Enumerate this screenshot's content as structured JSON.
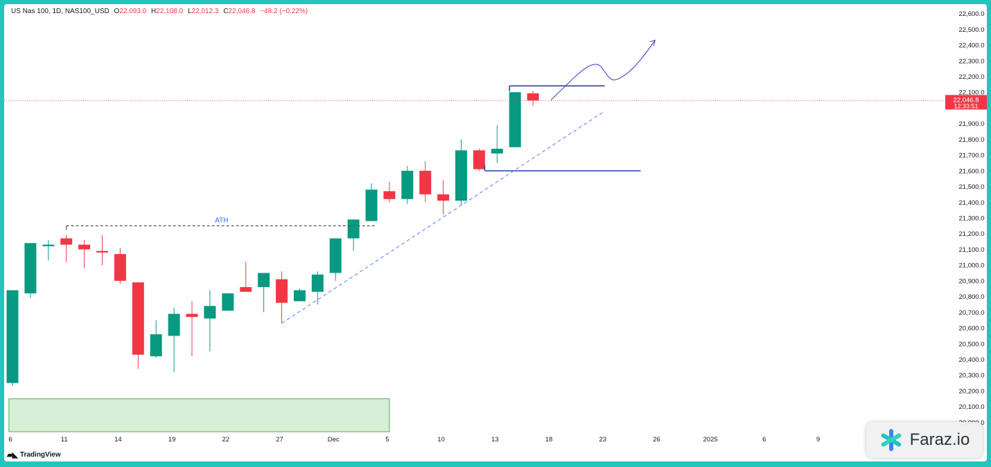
{
  "legend": {
    "symbol": "US Nas 100, 1D, NAS100_USD",
    "o_label": "O",
    "o_value": "22,093.0",
    "h_label": "H",
    "h_value": "22,108.0",
    "l_label": "L",
    "l_value": "22,012.3",
    "c_label": "C",
    "c_value": "22,046.8",
    "change": "−48.2 (−0.22%)"
  },
  "price_tag": {
    "price": "22,046.8",
    "countdown": "12:33:51",
    "value": 22046.8
  },
  "brand": {
    "tradingview": "TradingView",
    "watermark": "Faraz.io",
    "logo_icon": "asterisk-logo-icon"
  },
  "colors": {
    "up": "#089981",
    "down": "#f23645",
    "drawing": "#2962ff",
    "zone_fill": "#d6efd6",
    "zone_border": "#4caf50"
  },
  "chart_data": {
    "type": "candlestick",
    "title": "",
    "y_range": [
      19940,
      22660
    ],
    "y_ticks": [
      {
        "value": 20000,
        "label": "20,000.0"
      },
      {
        "value": 20100,
        "label": "20,100.0"
      },
      {
        "value": 20200,
        "label": "20,200.0"
      },
      {
        "value": 20300,
        "label": "20,300.0"
      },
      {
        "value": 20400,
        "label": "20,400.0"
      },
      {
        "value": 20500,
        "label": "20,500.0"
      },
      {
        "value": 20600,
        "label": "20,600.0"
      },
      {
        "value": 20700,
        "label": "20,700.0"
      },
      {
        "value": 20800,
        "label": "20,800.0"
      },
      {
        "value": 20900,
        "label": "20,900.0"
      },
      {
        "value": 21000,
        "label": "21,000.0"
      },
      {
        "value": 21100,
        "label": "21,100.0"
      },
      {
        "value": 21200,
        "label": "21,200.0"
      },
      {
        "value": 21300,
        "label": "21,300.0"
      },
      {
        "value": 21400,
        "label": "21,400.0"
      },
      {
        "value": 21500,
        "label": "21,500.0"
      },
      {
        "value": 21600,
        "label": "21,600.0"
      },
      {
        "value": 21700,
        "label": "21,700.0"
      },
      {
        "value": 21800,
        "label": "21,800.0"
      },
      {
        "value": 21900,
        "label": "21,900.0"
      },
      {
        "value": 22100,
        "label": "22,100.0"
      },
      {
        "value": 22200,
        "label": "22,200.0"
      },
      {
        "value": 22300,
        "label": "22,300.0"
      },
      {
        "value": 22400,
        "label": "22,400.0"
      },
      {
        "value": 22500,
        "label": "22,500.0"
      },
      {
        "value": 22600,
        "label": "22,600.0"
      }
    ],
    "x_ticks": [
      {
        "index": 0,
        "label": "6"
      },
      {
        "index": 3,
        "label": "11"
      },
      {
        "index": 6,
        "label": "14"
      },
      {
        "index": 9,
        "label": "19"
      },
      {
        "index": 12,
        "label": "22"
      },
      {
        "index": 15,
        "label": "27"
      },
      {
        "index": 18,
        "label": "Dec"
      },
      {
        "index": 21,
        "label": "5"
      },
      {
        "index": 24,
        "label": "10"
      },
      {
        "index": 27,
        "label": "13"
      },
      {
        "index": 30,
        "label": "18"
      },
      {
        "index": 33,
        "label": "23"
      },
      {
        "index": 36,
        "label": "26"
      },
      {
        "index": 39,
        "label": "2025"
      },
      {
        "index": 42,
        "label": "6"
      },
      {
        "index": 45,
        "label": "9"
      }
    ],
    "candles": [
      {
        "o": 20250,
        "h": 20840,
        "l": 20230,
        "c": 20840
      },
      {
        "o": 20820,
        "h": 21140,
        "l": 20790,
        "c": 21140
      },
      {
        "o": 21120,
        "h": 21160,
        "l": 21030,
        "c": 21130
      },
      {
        "o": 21170,
        "h": 21190,
        "l": 21020,
        "c": 21130
      },
      {
        "o": 21130,
        "h": 21160,
        "l": 20980,
        "c": 21100
      },
      {
        "o": 21090,
        "h": 21190,
        "l": 21000,
        "c": 21080
      },
      {
        "o": 21070,
        "h": 21110,
        "l": 20880,
        "c": 20900
      },
      {
        "o": 20890,
        "h": 20890,
        "l": 20340,
        "c": 20430
      },
      {
        "o": 20420,
        "h": 20650,
        "l": 20410,
        "c": 20560
      },
      {
        "o": 20550,
        "h": 20730,
        "l": 20320,
        "c": 20690
      },
      {
        "o": 20690,
        "h": 20770,
        "l": 20420,
        "c": 20670
      },
      {
        "o": 20660,
        "h": 20840,
        "l": 20450,
        "c": 20740
      },
      {
        "o": 20710,
        "h": 20820,
        "l": 20710,
        "c": 20820
      },
      {
        "o": 20860,
        "h": 21020,
        "l": 20840,
        "c": 20830
      },
      {
        "o": 20860,
        "h": 20950,
        "l": 20700,
        "c": 20950
      },
      {
        "o": 20910,
        "h": 20960,
        "l": 20630,
        "c": 20760
      },
      {
        "o": 20770,
        "h": 20850,
        "l": 20770,
        "c": 20840
      },
      {
        "o": 20830,
        "h": 20960,
        "l": 20750,
        "c": 20940
      },
      {
        "o": 20950,
        "h": 21170,
        "l": 20900,
        "c": 21170
      },
      {
        "o": 21170,
        "h": 21290,
        "l": 21090,
        "c": 21290
      },
      {
        "o": 21280,
        "h": 21520,
        "l": 21280,
        "c": 21480
      },
      {
        "o": 21470,
        "h": 21530,
        "l": 21400,
        "c": 21420
      },
      {
        "o": 21420,
        "h": 21630,
        "l": 21390,
        "c": 21600
      },
      {
        "o": 21600,
        "h": 21660,
        "l": 21400,
        "c": 21450
      },
      {
        "o": 21450,
        "h": 21540,
        "l": 21320,
        "c": 21410
      },
      {
        "o": 21410,
        "h": 21800,
        "l": 21380,
        "c": 21730
      },
      {
        "o": 21730,
        "h": 21740,
        "l": 21600,
        "c": 21610
      },
      {
        "o": 21710,
        "h": 21890,
        "l": 21650,
        "c": 21740
      },
      {
        "o": 21750,
        "h": 22100,
        "l": 21750,
        "c": 22100
      },
      {
        "o": 22093,
        "h": 22108,
        "l": 22012,
        "c": 22046.8
      }
    ],
    "annotations": {
      "ath_label": "ATH",
      "ath_level": 21250,
      "ath_from_index": 3,
      "ath_to_index": 20.3,
      "resistance_level": 22140,
      "resistance_from_index": 28,
      "resistance_to_index": 33,
      "support_level": 21600,
      "support_from_index": 26,
      "support_to_index": 35,
      "trendline": [
        {
          "index": 15,
          "value": 20630
        },
        {
          "index": 33,
          "value": 21980
        }
      ],
      "zone": {
        "from_index": -0.2,
        "to_index": 21,
        "low": 19940,
        "high": 20150
      }
    }
  }
}
